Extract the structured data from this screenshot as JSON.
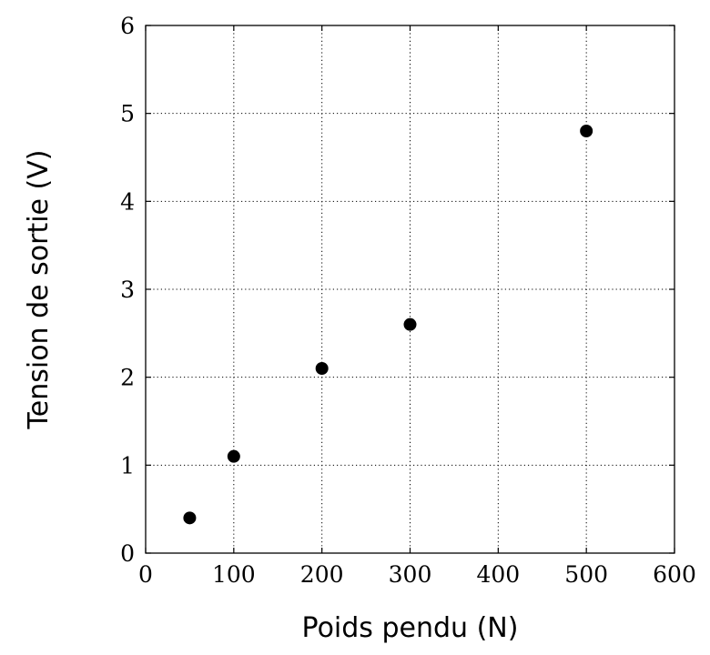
{
  "chart_data": {
    "type": "scatter",
    "title": "",
    "xlabel": "Poids pendu (N)",
    "ylabel": "Tension de sortie (V)",
    "xlim": [
      0,
      600
    ],
    "ylim": [
      0,
      6
    ],
    "x_ticks": [
      0,
      100,
      200,
      300,
      400,
      500,
      600
    ],
    "y_ticks": [
      0,
      1,
      2,
      3,
      4,
      5,
      6
    ],
    "x_tick_labels": [
      "0",
      "100",
      "200",
      "300",
      "400",
      "500",
      "600"
    ],
    "y_tick_labels": [
      "0",
      "1",
      "2",
      "3",
      "4",
      "5",
      "6"
    ],
    "grid": true,
    "grid_style": "dotted",
    "legend": false,
    "series": [
      {
        "marker_color": "#000000",
        "points": [
          {
            "x": 50,
            "y": 0.4
          },
          {
            "x": 100,
            "y": 1.1
          },
          {
            "x": 200,
            "y": 2.1
          },
          {
            "x": 300,
            "y": 2.6
          },
          {
            "x": 500,
            "y": 4.8
          }
        ]
      }
    ]
  }
}
